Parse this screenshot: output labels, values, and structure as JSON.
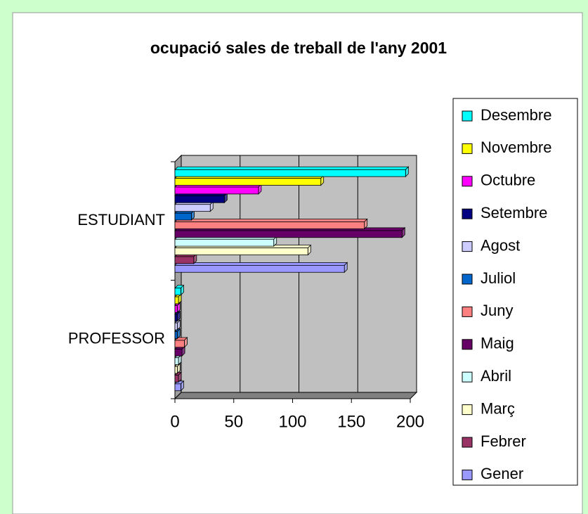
{
  "chart_data": {
    "type": "bar3d-horizontal",
    "title": "ocupació sales de treball de l'any 2001",
    "categories": [
      "ESTUDIANT",
      "PROFESSOR"
    ],
    "series": [
      {
        "name": "Gener",
        "color": "#9999ff",
        "values": [
          144,
          5
        ]
      },
      {
        "name": "Febrer",
        "color": "#993366",
        "values": [
          16,
          3
        ]
      },
      {
        "name": "Març",
        "color": "#ffffcc",
        "values": [
          113,
          2
        ]
      },
      {
        "name": "Abril",
        "color": "#ccffff",
        "values": [
          84,
          3
        ]
      },
      {
        "name": "Maig",
        "color": "#660066",
        "values": [
          193,
          6
        ]
      },
      {
        "name": "Juny",
        "color": "#ff8080",
        "values": [
          161,
          8
        ]
      },
      {
        "name": "Juliol",
        "color": "#0066cc",
        "values": [
          14,
          2
        ]
      },
      {
        "name": "Agost",
        "color": "#ccccff",
        "values": [
          30,
          2
        ]
      },
      {
        "name": "Setembre",
        "color": "#000080",
        "values": [
          42,
          2
        ]
      },
      {
        "name": "Octubre",
        "color": "#ff00ff",
        "values": [
          71,
          2
        ]
      },
      {
        "name": "Novembre",
        "color": "#ffff00",
        "values": [
          124,
          3
        ]
      },
      {
        "name": "Desembre",
        "color": "#00ffff",
        "values": [
          196,
          5
        ]
      }
    ],
    "xlim": [
      0,
      200
    ],
    "xticks": [
      0,
      50,
      100,
      150,
      200
    ],
    "grid": true,
    "legend": "right"
  }
}
